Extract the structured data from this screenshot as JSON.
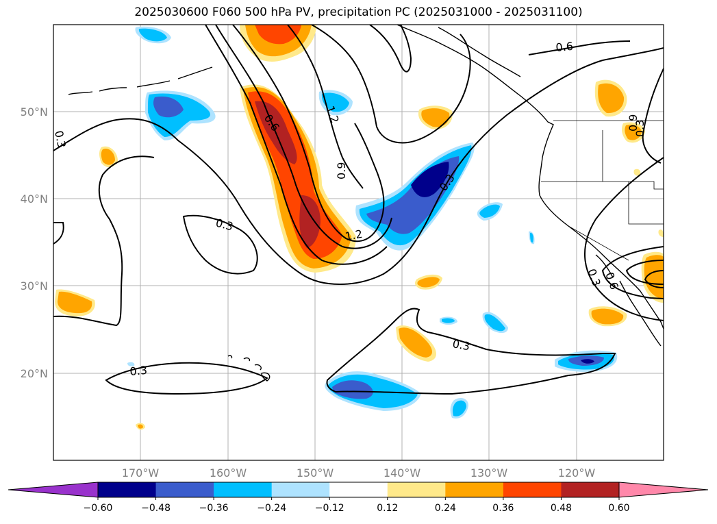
{
  "title": "2025030600 F060 500 hPa PV, precipitation PC (2025031000 - 2025031100)",
  "map": {
    "lon_labels": [
      "170°W",
      "160°W",
      "150°W",
      "140°W",
      "130°W",
      "120°W"
    ],
    "lat_labels": [
      "50°N",
      "40°N",
      "30°N",
      "20°N"
    ],
    "gridlines": true,
    "extent": {
      "lon": [
        -180,
        -110
      ],
      "lat": [
        10,
        60
      ]
    },
    "pv_contour_labels": [
      "0.3",
      "0.6",
      "1.2",
      "0.9",
      "0.3",
      "1.2",
      "0.3",
      "0.3",
      "0.3",
      "0.6",
      "0.9",
      "0.3",
      "0.6",
      "0.3"
    ]
  },
  "colorbar": {
    "ticks": [
      "−0.60",
      "−0.48",
      "−0.36",
      "−0.24",
      "−0.12",
      "0.12",
      "0.24",
      "0.36",
      "0.48",
      "0.60"
    ],
    "colors": [
      "#9932cc",
      "#00008b",
      "#3a5ccc",
      "#00bfff",
      "#aee3ff",
      "#ffffff",
      "#ffe98a",
      "#ffa500",
      "#ff4500",
      "#b22222",
      "#ff88aa"
    ],
    "extend": "both"
  },
  "colors": {
    "neg_strong": "#00008b",
    "neg_mid": "#3a5ccc",
    "neg": "#00bfff",
    "neg_weak": "#aee3ff",
    "pos_weak": "#ffe98a",
    "pos": "#ffa500",
    "pos_mid": "#ff4500",
    "pos_strong": "#b22222"
  }
}
